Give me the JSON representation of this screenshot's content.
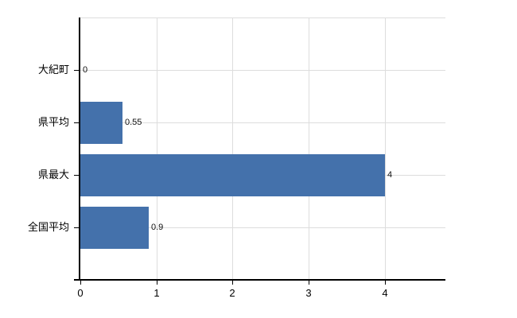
{
  "chart_data": {
    "type": "bar",
    "orientation": "horizontal",
    "title": "",
    "categories": [
      "大紀町",
      "県平均",
      "県最大",
      "全国平均"
    ],
    "values": [
      0,
      0.55,
      4,
      0.9
    ],
    "value_labels": [
      "0",
      "0.55",
      "4",
      "0.9"
    ],
    "x_ticks": [
      0,
      1,
      2,
      3,
      4
    ],
    "x_tick_labels": [
      "0",
      "1",
      "2",
      "3",
      "4"
    ],
    "xlim": [
      0,
      4.8
    ],
    "grid": true,
    "legend_position": "none",
    "bar_color": "#4471AB",
    "axis_color": "#000000",
    "grid_color": "#DDDDDD",
    "label_color": "#000000",
    "background_color": "#FFFFFF"
  }
}
